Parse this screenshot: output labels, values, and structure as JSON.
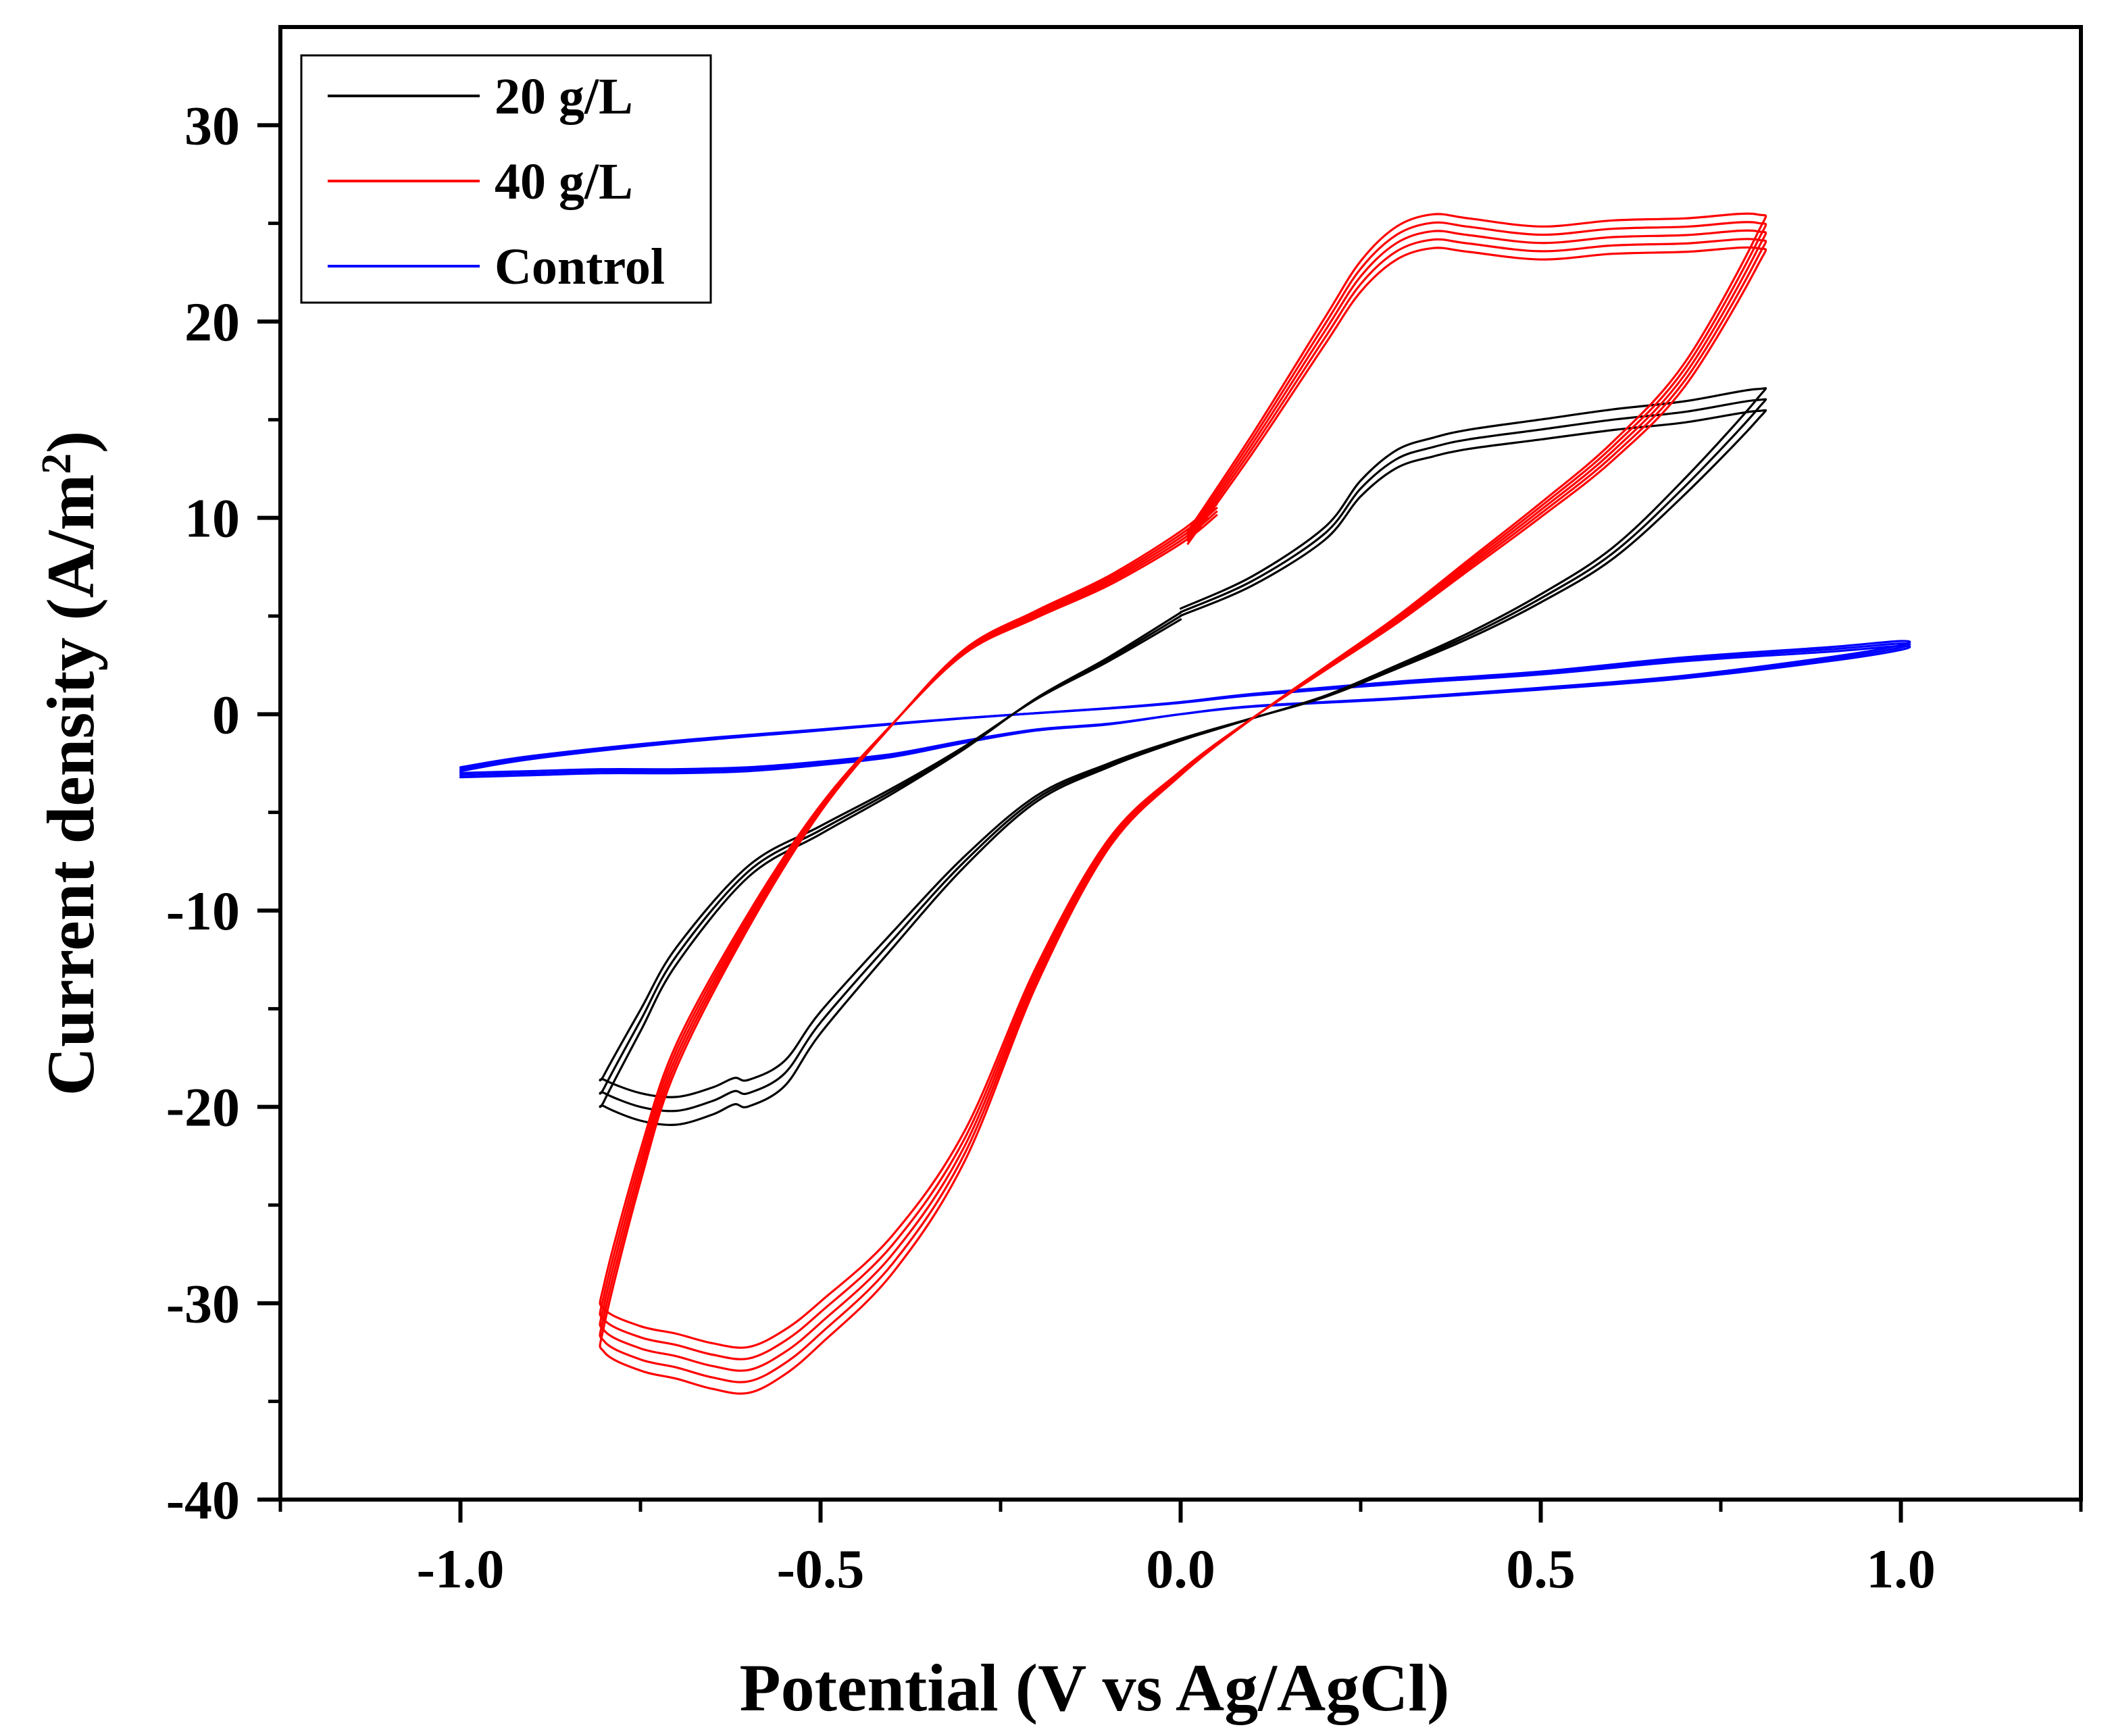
{
  "chart_data": {
    "type": "line",
    "title": "",
    "xlabel": "Potential (V vs Ag/AgCl)",
    "ylabel": "Current density (A/m",
    "ylabel_sup": "2",
    "ylabel_close": ")",
    "xlim": [
      -1.25,
      1.25
    ],
    "ylim": [
      -40,
      35
    ],
    "xticks": [
      -1.0,
      -0.5,
      0.0,
      0.5,
      1.0
    ],
    "xtick_labels": [
      "-1.0",
      "-0.5",
      "0.0",
      "0.5",
      "1.0"
    ],
    "yticks": [
      -40,
      -30,
      -20,
      -10,
      0,
      10,
      20,
      30
    ],
    "ytick_labels": [
      "-40",
      "-30",
      "-20",
      "-10",
      "0",
      "10",
      "20",
      "30"
    ],
    "grid": false,
    "legend_position": "top-left",
    "series": [
      {
        "name": "20 g/L",
        "color": "#000000",
        "cycles": 3,
        "x": [
          0.0,
          0.1,
          0.2,
          0.25,
          0.3,
          0.35,
          0.4,
          0.5,
          0.6,
          0.7,
          0.8,
          0.8,
          0.7,
          0.6,
          0.5,
          0.4,
          0.3,
          0.2,
          0.1,
          0.0,
          -0.1,
          -0.2,
          -0.3,
          -0.4,
          -0.5,
          -0.55,
          -0.6,
          -0.62,
          -0.65,
          -0.7,
          -0.75,
          -0.8,
          -0.8,
          -0.75,
          -0.7,
          -0.6,
          -0.5,
          -0.4,
          -0.3,
          -0.2,
          -0.1,
          0.0
        ],
        "y": [
          5.2,
          6.8,
          9.2,
          11.5,
          13.0,
          13.6,
          14.0,
          14.5,
          15.0,
          15.4,
          16.0,
          15.5,
          11.6,
          8.2,
          5.9,
          4.0,
          2.4,
          0.9,
          -0.2,
          -1.3,
          -2.6,
          -4.3,
          -7.5,
          -11.5,
          -15.7,
          -18.3,
          -19.3,
          -19.2,
          -19.7,
          -20.2,
          -20.0,
          -19.3,
          -19.0,
          -15.6,
          -12.3,
          -8.0,
          -5.9,
          -3.9,
          -1.7,
          0.8,
          2.8,
          5.0
        ]
      },
      {
        "name": "40 g/L",
        "color": "#ff0000",
        "cycles": 5,
        "x": [
          0.01,
          0.1,
          0.2,
          0.25,
          0.3,
          0.35,
          0.4,
          0.5,
          0.6,
          0.7,
          0.8,
          0.8,
          0.7,
          0.6,
          0.5,
          0.4,
          0.3,
          0.2,
          0.1,
          0.0,
          -0.1,
          -0.2,
          -0.3,
          -0.4,
          -0.5,
          -0.55,
          -0.6,
          -0.65,
          -0.7,
          -0.75,
          -0.8,
          -0.8,
          -0.75,
          -0.7,
          -0.6,
          -0.5,
          -0.4,
          -0.3,
          -0.2,
          -0.1,
          0.0,
          0.05
        ],
        "y": [
          9.0,
          13.8,
          19.5,
          22.3,
          24.0,
          24.6,
          24.4,
          24.0,
          24.3,
          24.4,
          24.6,
          23.6,
          17.3,
          13.4,
          10.4,
          7.6,
          4.8,
          2.3,
          -0.2,
          -3.0,
          -6.6,
          -13.3,
          -22.0,
          -27.5,
          -31.0,
          -32.5,
          -33.4,
          -33.2,
          -32.7,
          -32.3,
          -31.4,
          -30.0,
          -23.0,
          -17.4,
          -10.5,
          -4.8,
          -0.5,
          3.2,
          5.1,
          6.8,
          9.0,
          10.5
        ]
      },
      {
        "name": "Control",
        "color": "#0000ff",
        "cycles": 3,
        "x": [
          -1.0,
          -0.9,
          -0.7,
          -0.5,
          -0.3,
          -0.1,
          0.0,
          0.1,
          0.3,
          0.5,
          0.7,
          0.9,
          1.0,
          1.0,
          0.9,
          0.7,
          0.5,
          0.3,
          0.1,
          0.0,
          -0.1,
          -0.2,
          -0.3,
          -0.4,
          -0.5,
          -0.6,
          -0.7,
          -0.8,
          -0.9,
          -1.0
        ],
        "y": [
          -2.8,
          -2.2,
          -1.4,
          -0.8,
          -0.2,
          0.3,
          0.6,
          1.0,
          1.6,
          2.1,
          2.8,
          3.3,
          3.6,
          3.4,
          2.8,
          1.9,
          1.3,
          0.8,
          0.4,
          0.0,
          -0.5,
          -0.8,
          -1.4,
          -2.1,
          -2.5,
          -2.8,
          -2.9,
          -2.9,
          -3.0,
          -3.1
        ]
      }
    ]
  }
}
